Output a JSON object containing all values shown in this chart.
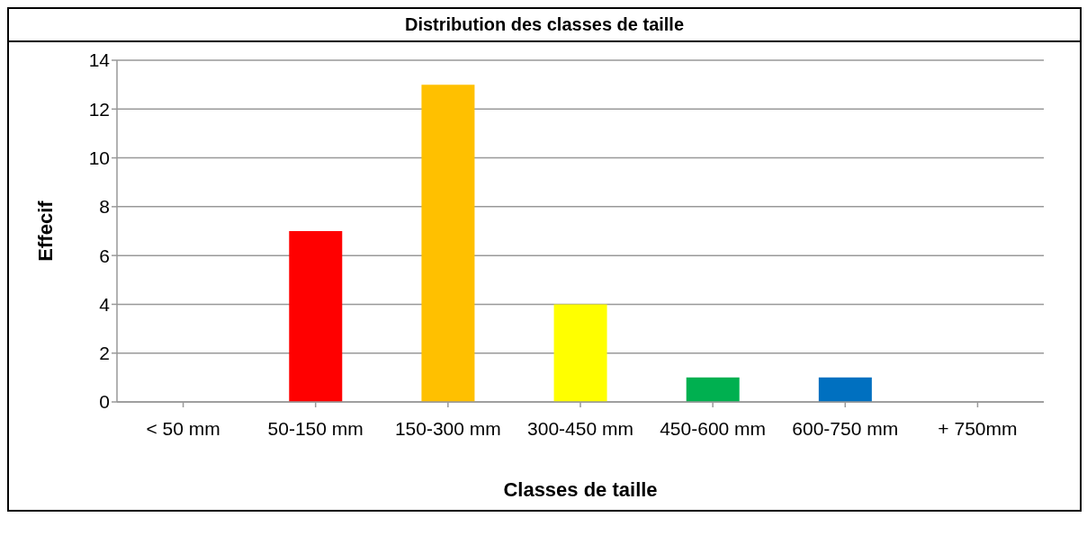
{
  "chart_data": {
    "type": "bar",
    "title": "Distribution des classes de taille",
    "xlabel": "Classes de taille",
    "ylabel": "Effecif",
    "categories": [
      "< 50 mm",
      "50-150 mm",
      "150-300 mm",
      "300-450 mm",
      "450-600 mm",
      "600-750 mm",
      "+ 750mm"
    ],
    "values": [
      0,
      7,
      13,
      4,
      1,
      1,
      0
    ],
    "colors": [
      null,
      "#ff0000",
      "#ffc000",
      "#ffff00",
      "#00b050",
      "#0070c0",
      null
    ],
    "ylim": [
      0,
      14
    ],
    "yticks": [
      0,
      2,
      4,
      6,
      8,
      10,
      12,
      14
    ],
    "grid": "y",
    "legend": false
  }
}
